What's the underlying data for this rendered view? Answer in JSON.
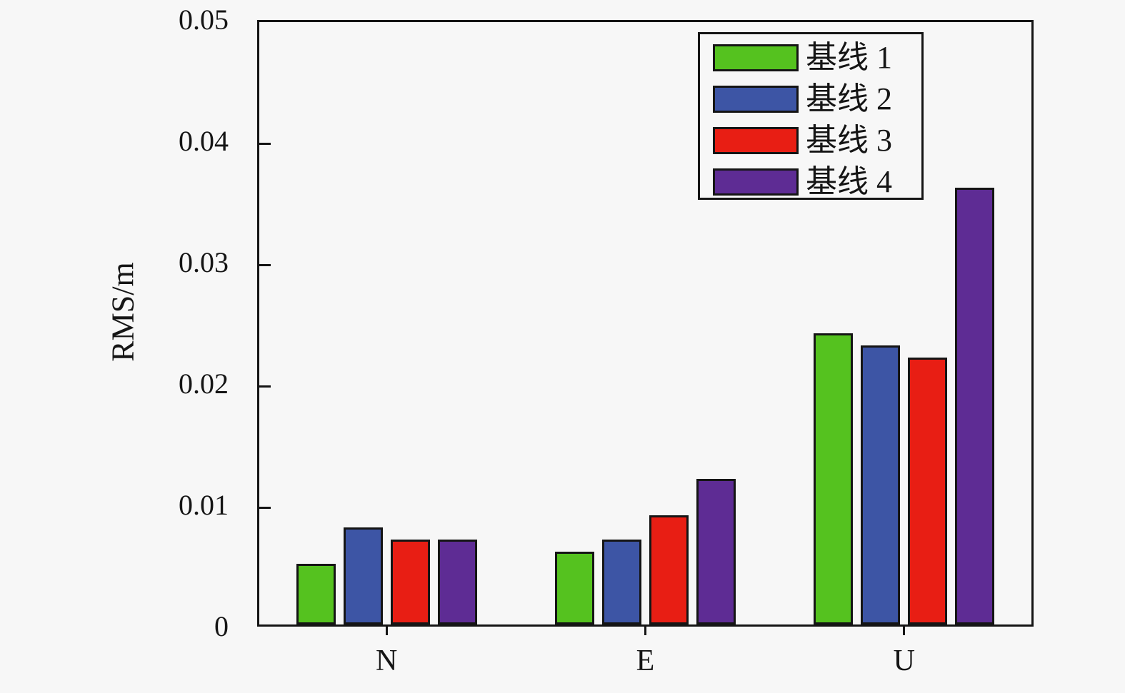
{
  "chart_data": {
    "type": "bar",
    "title": "",
    "xlabel": "",
    "ylabel": "RMS/m",
    "categories": [
      "N",
      "E",
      "U"
    ],
    "series": [
      {
        "name": "基线 1",
        "color": "#55C21F",
        "values": [
          0.005,
          0.006,
          0.024
        ]
      },
      {
        "name": "基线 2",
        "color": "#3D55A5",
        "values": [
          0.008,
          0.007,
          0.023
        ]
      },
      {
        "name": "基线 3",
        "color": "#E81E14",
        "values": [
          0.007,
          0.009,
          0.022
        ]
      },
      {
        "name": "基线 4",
        "color": "#5E2C94",
        "values": [
          0.007,
          0.012,
          0.036
        ]
      }
    ],
    "ylim": [
      0,
      0.05
    ],
    "yticks": [
      0,
      0.01,
      0.02,
      0.03,
      0.04,
      0.05
    ],
    "ytick_labels": [
      "0",
      "0.01",
      "0.02",
      "0.03",
      "0.04",
      "0.05"
    ],
    "grid": false,
    "legend_position": "top-right-inside",
    "frame": true
  }
}
